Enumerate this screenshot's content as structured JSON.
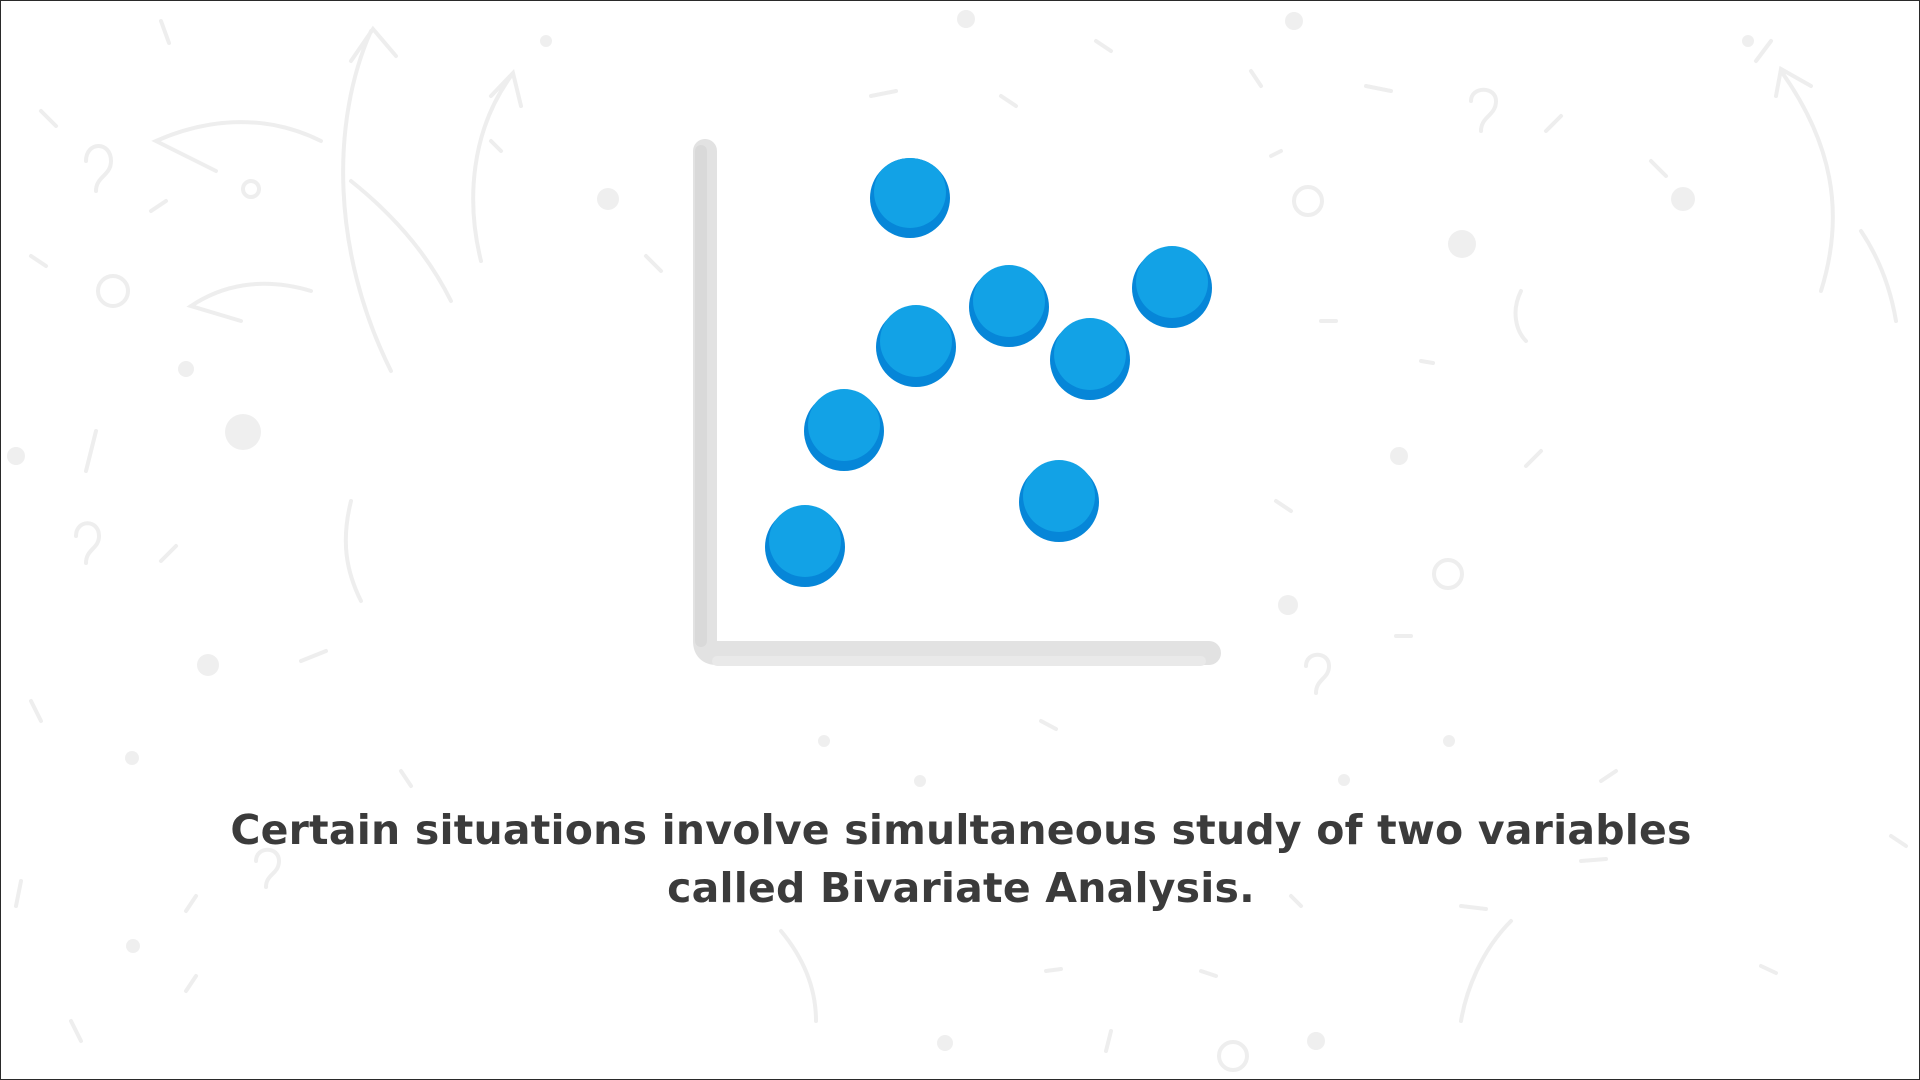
{
  "caption": {
    "line1": "Certain situations involve simultaneous study of two variables",
    "line2": "called Bivariate Analysis."
  },
  "colors": {
    "background": "#ffffff",
    "axis": "#e2e2e2",
    "dot_top": "#12a2e6",
    "dot_bottom": "#0686d8",
    "text": "#3b3b3b",
    "doodle": "#eeeeee"
  },
  "icons": {
    "illustration": "scatter-plot-icon",
    "background": "doodle-pattern"
  }
}
